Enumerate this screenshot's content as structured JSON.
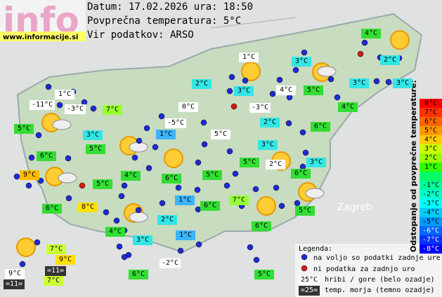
{
  "header": {
    "logo": "info",
    "site": "www.informacije.si",
    "date_line": "Datum: 17.02.2026 ura: 18:50",
    "average_line": "Povprečna temperatura: 5°C",
    "source_line": "Vir podatkov: ARSO"
  },
  "map": {
    "city": "Zagreb",
    "stations": [
      "4°C",
      "1°C",
      "3°C",
      "2°C",
      "2°C",
      "3°C",
      "3°C",
      "3°C",
      "4°C",
      "5°C",
      "1°C",
      "-11°C",
      "-3°C",
      "7°C",
      "0°C",
      "-3°C",
      "4°C",
      "2°C",
      "5°C",
      "-5°C",
      "6°C",
      "3°C",
      "1°C",
      "5°C",
      "5°C",
      "3°C",
      "6°C",
      "5°C",
      "2°C",
      "3°C",
      "4°C",
      "6°C",
      "5°C",
      "6°C",
      "9°C",
      "5°C",
      "1°C",
      "7°C",
      "6°C",
      "6°C",
      "8°C",
      "5°C",
      "2°C",
      "4°C",
      "6°C",
      "3°C",
      "1°C",
      "7°C",
      "9°C",
      "=11=",
      "-2°C",
      "9°C",
      "6°C",
      "5°C",
      "7°C",
      "=11="
    ]
  },
  "scale": {
    "title": "Odstopanje od povprečne temperature:",
    "labels": [
      "8°C",
      "7°C",
      "6°C",
      "5°C",
      "4°C",
      "3°C",
      "2°C",
      "1°C",
      "-1°C",
      "-2°C",
      "-3°C",
      "-4°C",
      "-5°C",
      "-6°C",
      "-7°C",
      "-8°C"
    ]
  },
  "legend": {
    "title": "Legenda:",
    "available": "na voljo so podatki zadnje ure",
    "missing": "ni podatka za zadnjo uro",
    "mountain_sample": "25°C",
    "mountain_text": "hribi / gore (belo ozadje)",
    "sea_sample": "=25=",
    "sea_text": "temp. morja (temno ozadje)"
  }
}
